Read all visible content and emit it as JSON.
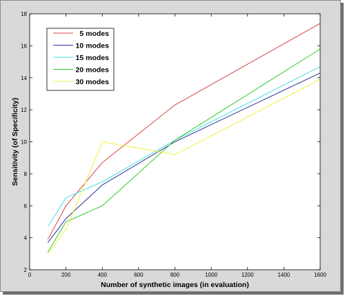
{
  "chart_data": {
    "type": "line",
    "title": "",
    "xlabel": "Number of synthetic images (in evaluation)",
    "ylabel": "Sensitivity (of Specificity)",
    "xlim": [
      0,
      1600
    ],
    "ylim": [
      2,
      18
    ],
    "xticks": [
      0,
      200,
      400,
      600,
      800,
      1000,
      1200,
      1400,
      1600
    ],
    "yticks": [
      2,
      4,
      6,
      8,
      10,
      12,
      14,
      16,
      18
    ],
    "grid": false,
    "legend_position": "top-left",
    "x": [
      100,
      200,
      400,
      800,
      1600
    ],
    "series": [
      {
        "name": "5 modes",
        "color": "#d94040",
        "values": [
          3.9,
          6.0,
          8.7,
          12.3,
          17.4
        ]
      },
      {
        "name": "10 modes",
        "color": "#2b2b9a",
        "values": [
          3.7,
          5.2,
          7.3,
          10.0,
          14.3
        ]
      },
      {
        "name": "15 modes",
        "color": "#3fe0e0",
        "values": [
          4.7,
          6.5,
          7.5,
          10.1,
          14.7
        ]
      },
      {
        "name": "20 modes",
        "color": "#2ecc2e",
        "values": [
          3.1,
          5.0,
          6.0,
          10.1,
          15.8
        ]
      },
      {
        "name": "30 modes",
        "color": "#f0f040",
        "values": [
          3.0,
          4.5,
          10.0,
          9.2,
          13.9
        ]
      }
    ]
  }
}
